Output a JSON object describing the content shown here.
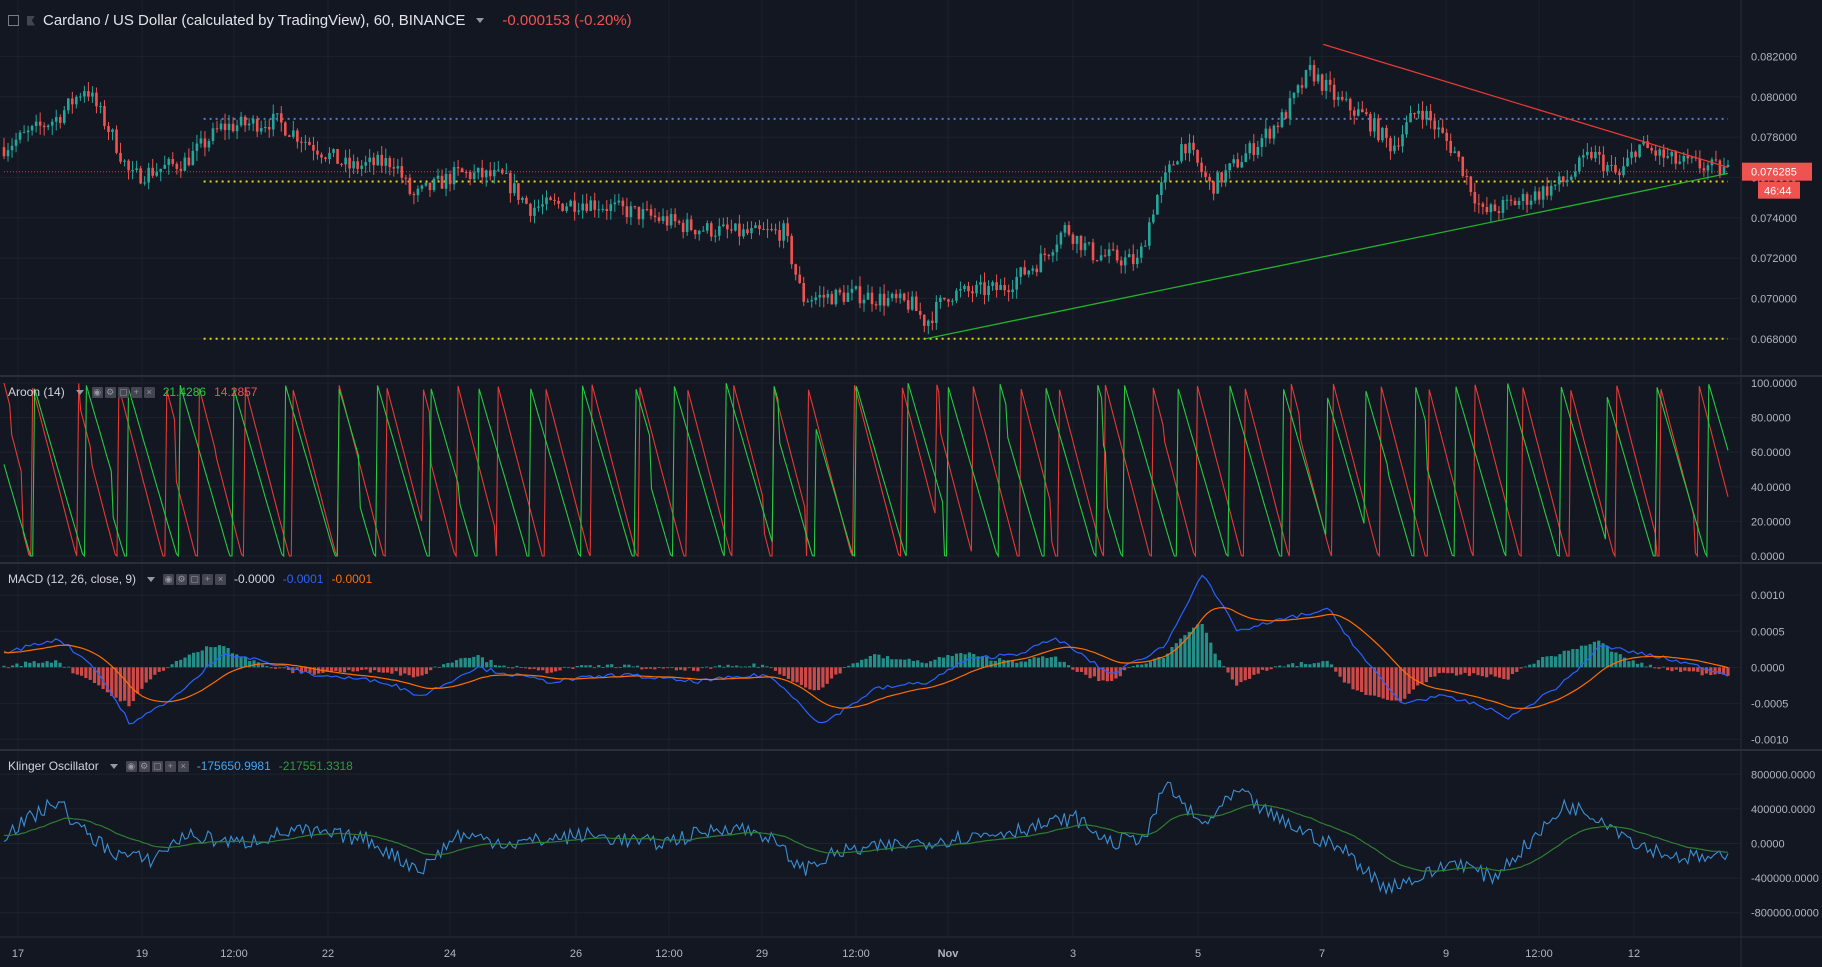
{
  "header": {
    "symbol_title": "Cardano / US Dollar (calculated by TradingView), 60, BINANCE",
    "change": "-0.000153 (-0.20%)"
  },
  "colors": {
    "background": "#131722",
    "grid": "#1e222d",
    "up": "#26a69a",
    "down": "#ef5350",
    "aroon_up": "#26c941",
    "aroon_down": "#e53935",
    "macd_line": "#2962ff",
    "macd_signal": "#ff6d00",
    "klinger": "#42a5f5",
    "klinger_signal": "#2e7d32",
    "hline_blue": "#4a7bd6",
    "hline_yellow": "#e6d31a",
    "trend_red": "#e53935",
    "trend_green": "#22b22b"
  },
  "price_tag": {
    "value": "0.076285",
    "countdown": "46:44"
  },
  "time_axis": {
    "labels": [
      "17",
      "19",
      "12:00",
      "22",
      "24",
      "26",
      "12:00",
      "29",
      "12:00",
      "Nov",
      "3",
      "5",
      "7",
      "9",
      "12:00",
      "12"
    ]
  },
  "panels": {
    "aroon": {
      "name": "Aroon (14)",
      "up_value": "21.4286",
      "down_value": "14.2857"
    },
    "macd": {
      "name": "MACD (12, 26, close, 9)",
      "histogram_value": "-0.0000",
      "macd_value": "-0.0001",
      "signal_value": "-0.0001"
    },
    "klinger": {
      "name": "Klinger Oscillator",
      "klinger_value": "-175650.9981",
      "signal_value": "-217551.3318"
    }
  },
  "chart_data": [
    {
      "type": "candlestick",
      "title": "Cardano / US Dollar (calculated by TradingView), 60, BINANCE",
      "ylim": [
        0.0665,
        0.0845
      ],
      "y_ticks": [
        "0.082000",
        "0.080000",
        "0.078000",
        "0.076000",
        "0.074000",
        "0.072000",
        "0.070000",
        "0.068000"
      ],
      "y_tick_values": [
        0.082,
        0.08,
        0.078,
        0.076,
        0.074,
        0.072,
        0.07,
        0.068
      ],
      "x_range": [
        0,
        100
      ],
      "anchors": [
        [
          0,
          0.0775
        ],
        [
          3,
          0.079
        ],
        [
          4.5,
          0.0805
        ],
        [
          6,
          0.078
        ],
        [
          7,
          0.076
        ],
        [
          10,
          0.0768
        ],
        [
          12,
          0.0785
        ],
        [
          15,
          0.0788
        ],
        [
          17,
          0.0776
        ],
        [
          19,
          0.0765
        ],
        [
          21.5,
          0.0768
        ],
        [
          22.5,
          0.075
        ],
        [
          25,
          0.0762
        ],
        [
          27.5,
          0.076
        ],
        [
          29,
          0.0745
        ],
        [
          32,
          0.0748
        ],
        [
          35,
          0.0742
        ],
        [
          38,
          0.0735
        ],
        [
          41,
          0.0732
        ],
        [
          43,
          0.0733
        ],
        [
          44,
          0.07
        ],
        [
          47,
          0.0702
        ],
        [
          50,
          0.0697
        ],
        [
          50.8,
          0.0688
        ],
        [
          52,
          0.0702
        ],
        [
          55,
          0.0705
        ],
        [
          57,
          0.0718
        ],
        [
          58.5,
          0.0735
        ],
        [
          60,
          0.0722
        ],
        [
          62.5,
          0.0718
        ],
        [
          63.5,
          0.075
        ],
        [
          65,
          0.0778
        ],
        [
          66.5,
          0.0755
        ],
        [
          68.5,
          0.0772
        ],
        [
          70.5,
          0.079
        ],
        [
          72,
          0.0813
        ],
        [
          73.5,
          0.0798
        ],
        [
          75,
          0.079
        ],
        [
          76.5,
          0.0775
        ],
        [
          78,
          0.0795
        ],
        [
          80,
          0.0772
        ],
        [
          81.5,
          0.0742
        ],
        [
          84,
          0.075
        ],
        [
          86,
          0.0758
        ],
        [
          87.5,
          0.0772
        ],
        [
          89,
          0.076
        ],
        [
          90,
          0.0776
        ],
        [
          92,
          0.0768
        ],
        [
          94,
          0.0765
        ],
        [
          95,
          0.0763
        ]
      ],
      "horizontal_lines": [
        {
          "value": 0.0789,
          "style": "dotted",
          "color": "blue",
          "x_start": 11
        },
        {
          "value": 0.0758,
          "style": "dotted",
          "color": "yellow",
          "x_start": 11
        },
        {
          "value": 0.068,
          "style": "dotted",
          "color": "yellow",
          "x_start": 11
        },
        {
          "value": 0.07628,
          "style": "dotted",
          "color": "red",
          "x_start": 0
        }
      ],
      "trend_lines": [
        {
          "color": "red",
          "from": [
            72.7,
            0.0826
          ],
          "to": [
            95,
            0.0765
          ]
        },
        {
          "color": "green",
          "from": [
            50.8,
            0.068
          ],
          "to": [
            95,
            0.0762
          ]
        }
      ],
      "last_price": 0.076285
    },
    {
      "type": "line",
      "title": "Aroon (14)",
      "ylim": [
        0,
        100
      ],
      "y_ticks": [
        "100.0000",
        "80.0000",
        "60.0000",
        "40.0000",
        "20.0000",
        "0.0000"
      ],
      "y_tick_values": [
        100,
        80,
        60,
        40,
        20,
        0
      ],
      "series": [
        {
          "name": "Up",
          "last": 21.4286
        },
        {
          "name": "Down",
          "last": 14.2857
        }
      ]
    },
    {
      "type": "line",
      "title": "MACD (12, 26, close, 9)",
      "ylim": [
        -0.00105,
        0.00135
      ],
      "y_ticks": [
        "0.0010",
        "0.0005",
        "0.0000",
        "-0.0005",
        "-0.0010"
      ],
      "y_tick_values": [
        0.001,
        0.0005,
        0.0,
        -0.0005,
        -0.001
      ],
      "macd_anchors": [
        [
          0,
          0.0002
        ],
        [
          3,
          0.0004
        ],
        [
          5,
          0.0
        ],
        [
          7,
          -0.0008
        ],
        [
          10,
          -0.0003
        ],
        [
          12,
          0.0002
        ],
        [
          14,
          0.0001
        ],
        [
          17,
          -0.0001
        ],
        [
          21,
          -0.0002
        ],
        [
          23,
          -0.0004
        ],
        [
          26,
          0.0
        ],
        [
          30,
          -0.0002
        ],
        [
          34,
          -0.0001
        ],
        [
          38,
          -0.0002
        ],
        [
          42,
          -0.0001
        ],
        [
          43.5,
          -0.0004
        ],
        [
          45,
          -0.0008
        ],
        [
          48,
          -0.0003
        ],
        [
          51,
          -0.0002
        ],
        [
          53,
          0.0001
        ],
        [
          56,
          0.0002
        ],
        [
          58,
          0.0004
        ],
        [
          61,
          -0.0001
        ],
        [
          64,
          0.0003
        ],
        [
          66,
          0.0013
        ],
        [
          68,
          0.0005
        ],
        [
          71,
          0.0007
        ],
        [
          73,
          0.0008
        ],
        [
          75,
          0.0001
        ],
        [
          77,
          -0.0005
        ],
        [
          79,
          -0.0004
        ],
        [
          81,
          -0.0005
        ],
        [
          83,
          -0.0007
        ],
        [
          86,
          -0.0002
        ],
        [
          88,
          0.0003
        ],
        [
          90,
          0.0002
        ],
        [
          92,
          0.0001
        ],
        [
          95,
          -0.0001
        ]
      ]
    },
    {
      "type": "line",
      "title": "Klinger Oscillator",
      "ylim": [
        -1000000,
        1000000
      ],
      "y_ticks": [
        "800000.0000",
        "400000.0000",
        "0.0000",
        "-400000.0000",
        "-800000.0000"
      ],
      "y_tick_values": [
        800000,
        400000,
        0,
        -400000,
        -800000
      ],
      "anchors": [
        [
          0,
          100000
        ],
        [
          3,
          500000
        ],
        [
          4,
          200000
        ],
        [
          6,
          -100000
        ],
        [
          8,
          -200000
        ],
        [
          10,
          100000
        ],
        [
          13,
          0
        ],
        [
          16,
          150000
        ],
        [
          20,
          50000
        ],
        [
          22,
          -200000
        ],
        [
          23,
          -300000
        ],
        [
          25,
          100000
        ],
        [
          28,
          0
        ],
        [
          32,
          100000
        ],
        [
          36,
          0
        ],
        [
          40,
          200000
        ],
        [
          42,
          100000
        ],
        [
          44,
          -300000
        ],
        [
          46,
          -100000
        ],
        [
          50,
          0
        ],
        [
          54,
          100000
        ],
        [
          57,
          200000
        ],
        [
          59,
          300000
        ],
        [
          61,
          0
        ],
        [
          63,
          100000
        ],
        [
          64,
          700000
        ],
        [
          66,
          200000
        ],
        [
          68,
          600000
        ],
        [
          70,
          300000
        ],
        [
          72,
          100000
        ],
        [
          74,
          -100000
        ],
        [
          76,
          -500000
        ],
        [
          78,
          -400000
        ],
        [
          80,
          -200000
        ],
        [
          82,
          -400000
        ],
        [
          85,
          200000
        ],
        [
          86,
          450000
        ],
        [
          88,
          300000
        ],
        [
          90,
          0
        ],
        [
          92,
          -150000
        ],
        [
          95,
          -180000
        ]
      ]
    }
  ]
}
